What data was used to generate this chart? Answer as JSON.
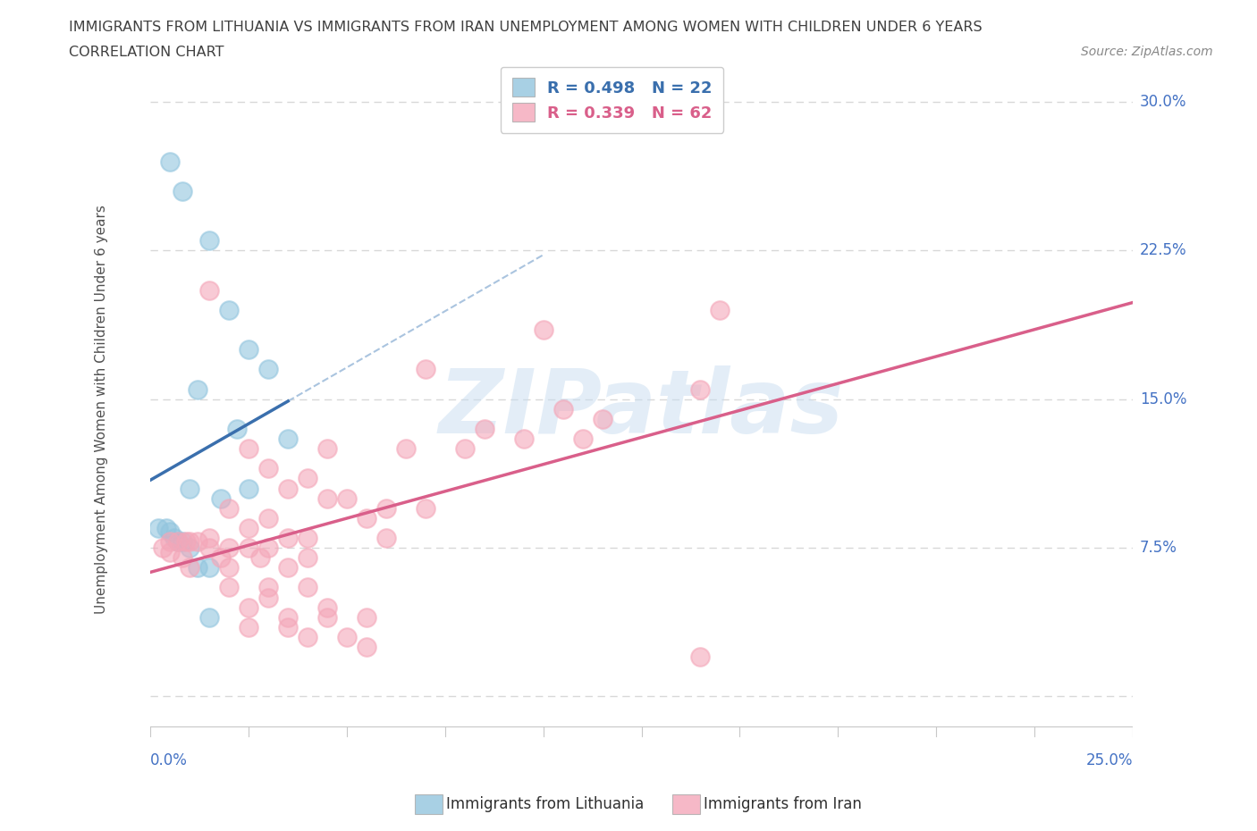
{
  "title_line1": "IMMIGRANTS FROM LITHUANIA VS IMMIGRANTS FROM IRAN UNEMPLOYMENT AMONG WOMEN WITH CHILDREN UNDER 6 YEARS",
  "title_line2": "CORRELATION CHART",
  "source": "Source: ZipAtlas.com",
  "ylabel": "Unemployment Among Women with Children Under 6 years",
  "legend_blue_label": "R = 0.498   N = 22",
  "legend_pink_label": "R = 0.339   N = 62",
  "legend_label_blue": "Immigrants from Lithuania",
  "legend_label_pink": "Immigrants from Iran",
  "watermark": "ZIPatlas",
  "blue_color": "#92c5de",
  "pink_color": "#f4a7b9",
  "blue_line_color": "#3a6fad",
  "pink_line_color": "#d95f8a",
  "blue_scatter": [
    [
      0.5,
      27.0
    ],
    [
      0.8,
      25.5
    ],
    [
      1.5,
      23.0
    ],
    [
      2.0,
      19.5
    ],
    [
      2.5,
      17.5
    ],
    [
      3.0,
      16.5
    ],
    [
      1.2,
      15.5
    ],
    [
      2.2,
      13.5
    ],
    [
      3.5,
      13.0
    ],
    [
      1.0,
      10.5
    ],
    [
      1.8,
      10.0
    ],
    [
      2.5,
      10.5
    ],
    [
      0.2,
      8.5
    ],
    [
      0.4,
      8.5
    ],
    [
      0.5,
      8.3
    ],
    [
      0.6,
      8.0
    ],
    [
      0.7,
      7.8
    ],
    [
      0.8,
      7.8
    ],
    [
      1.0,
      7.5
    ],
    [
      1.2,
      6.5
    ],
    [
      1.5,
      6.5
    ],
    [
      1.5,
      4.0
    ]
  ],
  "pink_scatter": [
    [
      1.5,
      20.5
    ],
    [
      14.5,
      19.5
    ],
    [
      10.0,
      18.5
    ],
    [
      7.0,
      16.5
    ],
    [
      14.0,
      15.5
    ],
    [
      10.5,
      14.5
    ],
    [
      11.5,
      14.0
    ],
    [
      8.5,
      13.5
    ],
    [
      9.5,
      13.0
    ],
    [
      11.0,
      13.0
    ],
    [
      2.5,
      12.5
    ],
    [
      4.5,
      12.5
    ],
    [
      6.5,
      12.5
    ],
    [
      8.0,
      12.5
    ],
    [
      3.0,
      11.5
    ],
    [
      4.0,
      11.0
    ],
    [
      3.5,
      10.5
    ],
    [
      4.5,
      10.0
    ],
    [
      5.0,
      10.0
    ],
    [
      6.0,
      9.5
    ],
    [
      7.0,
      9.5
    ],
    [
      2.0,
      9.5
    ],
    [
      3.0,
      9.0
    ],
    [
      5.5,
      9.0
    ],
    [
      2.5,
      8.5
    ],
    [
      3.5,
      8.0
    ],
    [
      4.0,
      8.0
    ],
    [
      6.0,
      8.0
    ],
    [
      1.5,
      8.0
    ],
    [
      0.5,
      7.8
    ],
    [
      0.7,
      7.8
    ],
    [
      0.9,
      7.8
    ],
    [
      1.0,
      7.8
    ],
    [
      1.2,
      7.8
    ],
    [
      1.5,
      7.5
    ],
    [
      2.0,
      7.5
    ],
    [
      2.5,
      7.5
    ],
    [
      3.0,
      7.5
    ],
    [
      0.3,
      7.5
    ],
    [
      0.5,
      7.3
    ],
    [
      0.8,
      7.0
    ],
    [
      1.8,
      7.0
    ],
    [
      2.8,
      7.0
    ],
    [
      4.0,
      7.0
    ],
    [
      1.0,
      6.5
    ],
    [
      2.0,
      6.5
    ],
    [
      3.5,
      6.5
    ],
    [
      2.0,
      5.5
    ],
    [
      3.0,
      5.5
    ],
    [
      4.0,
      5.5
    ],
    [
      3.0,
      5.0
    ],
    [
      2.5,
      4.5
    ],
    [
      4.5,
      4.5
    ],
    [
      3.5,
      4.0
    ],
    [
      4.5,
      4.0
    ],
    [
      5.5,
      4.0
    ],
    [
      2.5,
      3.5
    ],
    [
      3.5,
      3.5
    ],
    [
      4.0,
      3.0
    ],
    [
      5.0,
      3.0
    ],
    [
      5.5,
      2.5
    ],
    [
      14.0,
      2.0
    ]
  ],
  "xmin": 0.0,
  "xmax": 25.0,
  "ymin": -2.5,
  "ymax": 31.5,
  "ytick_positions": [
    0.0,
    7.5,
    15.0,
    22.5,
    30.0
  ],
  "ytick_labels": [
    "",
    "7.5%",
    "15.0%",
    "22.5%",
    "30.0%"
  ],
  "grid_color": "#d8d8d8",
  "background_color": "#ffffff",
  "title_color": "#404040"
}
